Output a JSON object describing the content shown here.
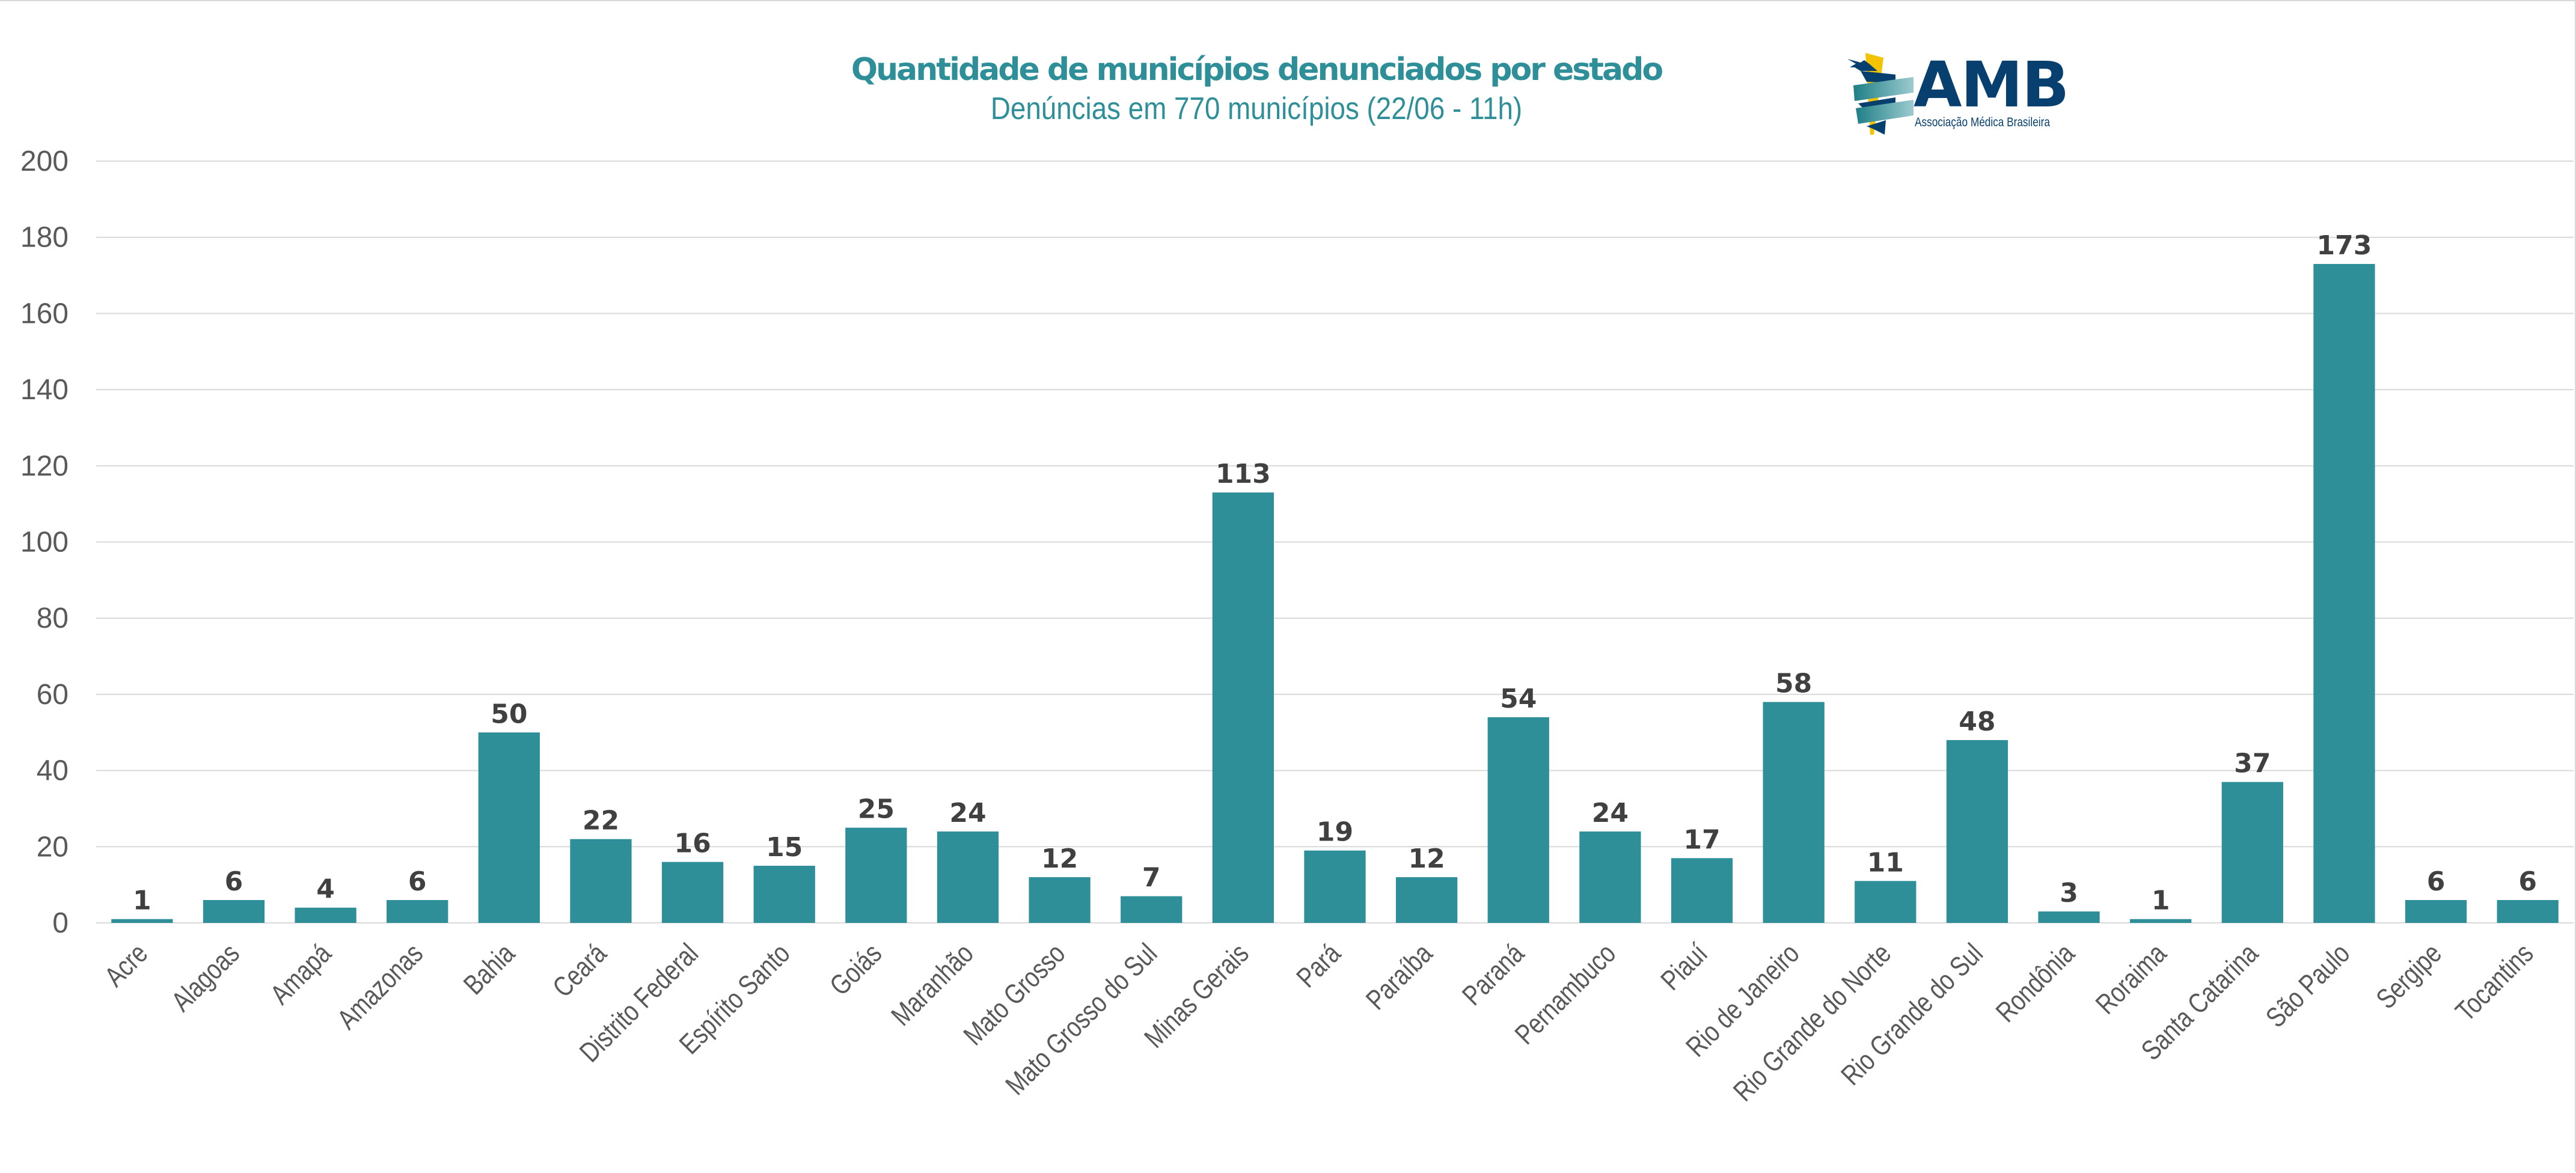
{
  "header": {
    "title": "Quantidade de municípios denunciados por estado",
    "subtitle": "Denúncias em 770 municípios (22/06 - 11h)"
  },
  "logo": {
    "icon": "caduceus-icon",
    "wordmark": "AMB",
    "tagline": "Associação Médica Brasileira",
    "colors": {
      "navy": "#073F6E",
      "yellow": "#F3C300",
      "teal": "#2E8F98"
    }
  },
  "colors": {
    "bar": "#2E8F98",
    "gridline": "#D9D9D9",
    "tick_label": "#595959",
    "data_label": "#404040",
    "title": "#2E8F98"
  },
  "chart_data": {
    "type": "bar",
    "title": "Quantidade de municípios denunciados por estado",
    "subtitle": "Denúncias em 770 municípios (22/06 - 11h)",
    "xlabel": "",
    "ylabel": "",
    "ylim": [
      0,
      200
    ],
    "yticks": [
      0,
      20,
      40,
      60,
      80,
      100,
      120,
      140,
      160,
      180,
      200
    ],
    "grid": true,
    "legend": "none",
    "data_labels": true,
    "categories": [
      "Acre",
      "Alagoas",
      "Amapá",
      "Amazonas",
      "Bahia",
      "Ceará",
      "Distrito Federal",
      "Espírito Santo",
      "Goiás",
      "Maranhão",
      "Mato Grosso",
      "Mato Grosso do Sul",
      "Minas Gerais",
      "Pará",
      "Paraíba",
      "Paraná",
      "Pernambuco",
      "Piauí",
      "Rio de Janeiro",
      "Rio Grande do Norte",
      "Rio Grande do Sul",
      "Rondônia",
      "Roraima",
      "Santa Catarina",
      "São Paulo",
      "Sergipe",
      "Tocantins"
    ],
    "values": [
      1,
      6,
      4,
      6,
      50,
      22,
      16,
      15,
      25,
      24,
      12,
      7,
      113,
      19,
      12,
      54,
      24,
      17,
      58,
      11,
      48,
      3,
      1,
      37,
      173,
      6,
      6
    ]
  }
}
